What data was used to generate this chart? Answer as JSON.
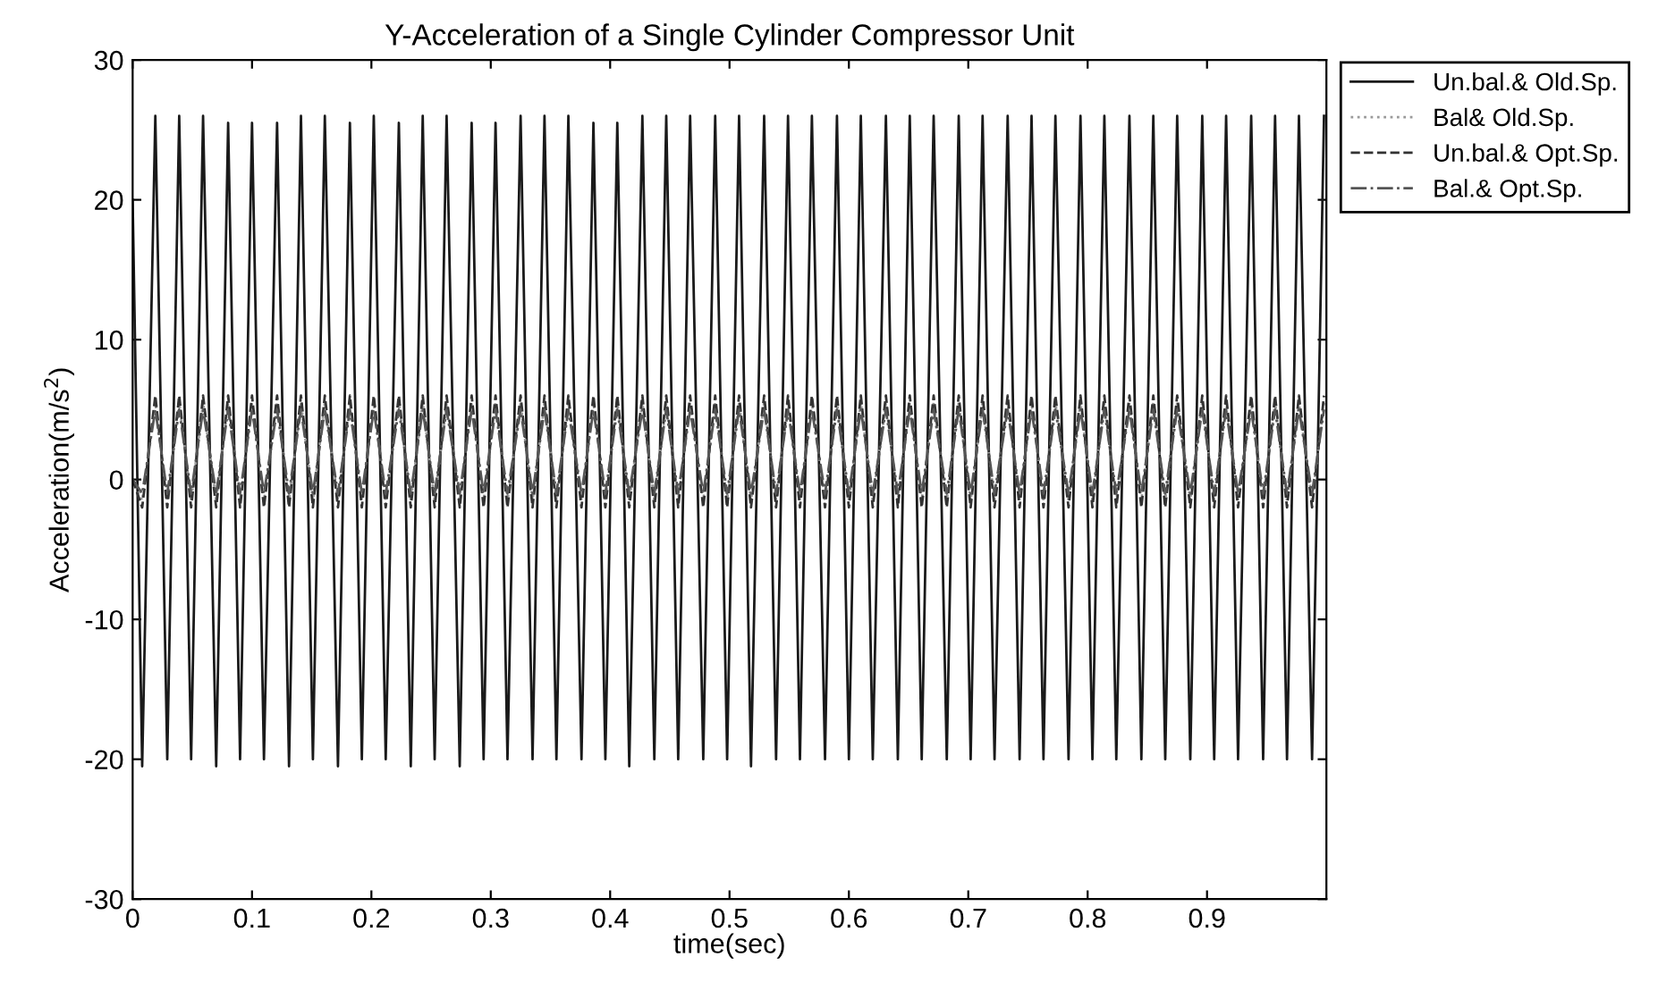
{
  "chart_data": {
    "type": "line",
    "title": "Y-Acceleration of a Single Cylinder Compressor Unit",
    "xlabel": "time(sec)",
    "ylabel": "Acceleration(m/s$^{2}$)",
    "x": [
      0,
      0.008,
      0.019,
      0.029,
      0.039,
      0.049,
      0.059,
      0.07,
      0.08,
      0.09,
      0.1,
      0.11,
      0.121,
      0.131,
      0.141,
      0.151,
      0.161,
      0.172,
      0.182,
      0.192,
      0.202,
      0.212,
      0.223,
      0.233,
      0.243,
      0.253,
      0.263,
      0.274,
      0.284,
      0.294,
      0.304,
      0.314,
      0.325,
      0.335,
      0.345,
      0.355,
      0.365,
      0.376,
      0.386,
      0.396,
      0.406,
      0.416,
      0.427,
      0.437,
      0.447,
      0.457,
      0.467,
      0.478,
      0.488,
      0.498,
      0.508,
      0.518,
      0.529,
      0.539,
      0.549,
      0.559,
      0.569,
      0.58,
      0.59,
      0.6,
      0.61,
      0.62,
      0.631,
      0.641,
      0.651,
      0.661,
      0.671,
      0.682,
      0.692,
      0.702,
      0.712,
      0.722,
      0.733,
      0.743,
      0.753,
      0.763,
      0.773,
      0.784,
      0.794,
      0.804,
      0.814,
      0.824,
      0.835,
      0.845,
      0.855,
      0.865,
      0.875,
      0.886,
      0.896,
      0.906,
      0.916,
      0.926,
      0.937,
      0.947,
      0.957,
      0.967,
      0.977,
      0.988,
      0.998
    ],
    "xlim": [
      0,
      1
    ],
    "xticks": [
      0,
      0.1,
      0.2,
      0.3,
      0.4,
      0.5,
      0.6,
      0.7,
      0.8,
      0.9
    ],
    "ylim": [
      -30,
      30
    ],
    "yticks": [
      -30,
      -20,
      -10,
      0,
      10,
      20,
      30
    ],
    "grid": false,
    "legend": "top right",
    "series": [
      {
        "name": "Un.bal.& Old.Sp.",
        "color": "#1a1a1a",
        "line_style": "solid",
        "values": [
          20,
          -20.5,
          26,
          -20,
          26,
          -20,
          26,
          -20.5,
          25.5,
          -20,
          25.5,
          -20,
          25.5,
          -20.5,
          26,
          -20,
          26,
          -20.5,
          25.5,
          -20,
          26,
          -20,
          25.5,
          -20.5,
          26,
          -20,
          26,
          -20.5,
          25.5,
          -20,
          25.5,
          -20,
          26,
          -20,
          26,
          -20,
          26,
          -20,
          25.5,
          -20,
          25.5,
          -20.5,
          26,
          -20,
          26,
          -20,
          26,
          -20,
          26,
          -20,
          26,
          -20.5,
          26,
          -20,
          26,
          -20,
          26,
          -20,
          26,
          -20,
          26,
          -20,
          26,
          -20,
          26,
          -20,
          26,
          -20,
          26,
          -20,
          26,
          -20,
          26,
          -20,
          26,
          -20,
          26,
          -20,
          26,
          -20,
          26,
          -20,
          26,
          -20,
          26,
          -20,
          26,
          -20,
          26,
          -20,
          26,
          -20,
          26,
          -20,
          26,
          -20,
          26,
          -20,
          26
        ]
      },
      {
        "name": "Bal& Old.Sp.",
        "color": "#9a9a9a",
        "line_style": "dotted",
        "values": [
          0,
          -1.5,
          5.5,
          -1.5,
          5.5,
          -1.5,
          5.5,
          -1.5,
          5.5,
          -1.5,
          5.5,
          -1.5,
          5.5,
          -1.5,
          5.5,
          -1.5,
          5.5,
          -1.5,
          5.5,
          -1.5,
          5.5,
          -1.5,
          5.5,
          -1.5,
          5.5,
          -1.5,
          5.5,
          -1.5,
          5.5,
          -1.5,
          5.5,
          -1.5,
          5.5,
          -1.5,
          5.5,
          -1.5,
          5.5,
          -1.5,
          5.5,
          -1.5,
          5.5,
          -1.5,
          5.5,
          -1.5,
          5.5,
          -1.5,
          5.5,
          -1.5,
          5.5,
          -1.5,
          5.5,
          -1.5,
          5.5,
          -1.5,
          5.5,
          -1.5,
          5.5,
          -1.5,
          5.5,
          -1.5,
          5.5,
          -1.5,
          5.5,
          -1.5,
          5.5,
          -1.5,
          5.5,
          -1.5,
          5.5,
          -1.5,
          5.5,
          -1.5,
          5.5,
          -1.5,
          5.5,
          -1.5,
          5.5,
          -1.5,
          5.5,
          -1.5,
          5.5,
          -1.5,
          5.5,
          -1.5,
          5.5,
          -1.5,
          5.5,
          -1.5,
          5.5,
          -1.5,
          5.5,
          -1.5,
          5.5,
          -1.5,
          5.5,
          -1.5,
          5.5,
          -1.5,
          5.5
        ]
      },
      {
        "name": "Un.bal.& Opt.Sp.",
        "color": "#333333",
        "line_style": "dashed",
        "values": [
          0,
          -2,
          6,
          -2,
          6,
          -2,
          6,
          -2,
          6,
          -2,
          6,
          -2,
          6,
          -2,
          6,
          -2,
          6,
          -2,
          6,
          -2,
          6,
          -2,
          6,
          -2,
          6,
          -2,
          6,
          -2,
          6,
          -2,
          6,
          -2,
          6,
          -2,
          6,
          -2,
          6,
          -2,
          6,
          -2,
          6,
          -2,
          6,
          -2,
          6,
          -2,
          6,
          -2,
          6,
          -2,
          6,
          -2,
          6,
          -2,
          6,
          -2,
          6,
          -2,
          6,
          -2,
          6,
          -2,
          6,
          -2,
          6,
          -2,
          6,
          -2,
          6,
          -2,
          6,
          -2,
          6,
          -2,
          6,
          -2,
          6,
          -2,
          6,
          -2,
          6,
          -2,
          6,
          -2,
          6,
          -2,
          6,
          -2,
          6,
          -2,
          6,
          -2,
          6,
          -2,
          6,
          -2,
          6,
          -2,
          6
        ]
      },
      {
        "name": "Bal.& Opt.Sp.",
        "color": "#555555",
        "line_style": "dashdot",
        "values": [
          0,
          -1,
          5,
          -1,
          5,
          -1,
          5,
          -1,
          5,
          -1,
          5,
          -1,
          5,
          -1,
          5,
          -1,
          5,
          -1,
          5,
          -1,
          5,
          -1,
          5,
          -1,
          5,
          -1,
          5,
          -1,
          5,
          -1,
          5,
          -1,
          5,
          -1,
          5,
          -1,
          5,
          -1,
          5,
          -1,
          5,
          -1,
          5,
          -1,
          5,
          -1,
          5,
          -1,
          5,
          -1,
          5,
          -1,
          5,
          -1,
          5,
          -1,
          5,
          -1,
          5,
          -1,
          5,
          -1,
          5,
          -1,
          5,
          -1,
          5,
          -1,
          5,
          -1,
          5,
          -1,
          5,
          -1,
          5,
          -1,
          5,
          -1,
          5,
          -1,
          5,
          -1,
          5,
          -1,
          5,
          -1,
          5,
          -1,
          5,
          -1,
          5,
          -1,
          5,
          -1,
          5,
          -1,
          5,
          -1,
          5
        ]
      }
    ]
  }
}
